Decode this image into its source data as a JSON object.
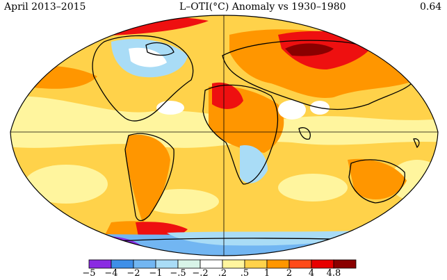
{
  "header": {
    "period": "April 2013–2015",
    "title": "L–OTI(°C) Anomaly vs 1930–1980",
    "mean_value": "0.64"
  },
  "legend": {
    "labels": [
      "−5",
      "−4",
      "−2",
      "−1",
      "−.5",
      "−.2",
      ".2",
      ".5",
      "1",
      "2",
      "4",
      "4.8"
    ],
    "colors": [
      "#8a2be2",
      "#3f8fe8",
      "#72b6f2",
      "#a9dcf6",
      "#d8f4e8",
      "#ffffff",
      "#fff59e",
      "#ffd24a",
      "#ff9600",
      "#ff4a18",
      "#e80000",
      "#8a0000"
    ]
  },
  "map": {
    "projection": "Robinson",
    "color_stops": {
      "yellow": "#fff59e",
      "gold": "#ffd24a",
      "orange": "#ff9600",
      "red": "#ee1010",
      "darkred": "#8a0000",
      "lightblue": "#a9dcf6",
      "blue": "#72b6f2",
      "deepblue": "#3f8fe8",
      "purple": "#8a2be2",
      "gray": "#9a9a9a",
      "white": "#ffffff"
    }
  }
}
